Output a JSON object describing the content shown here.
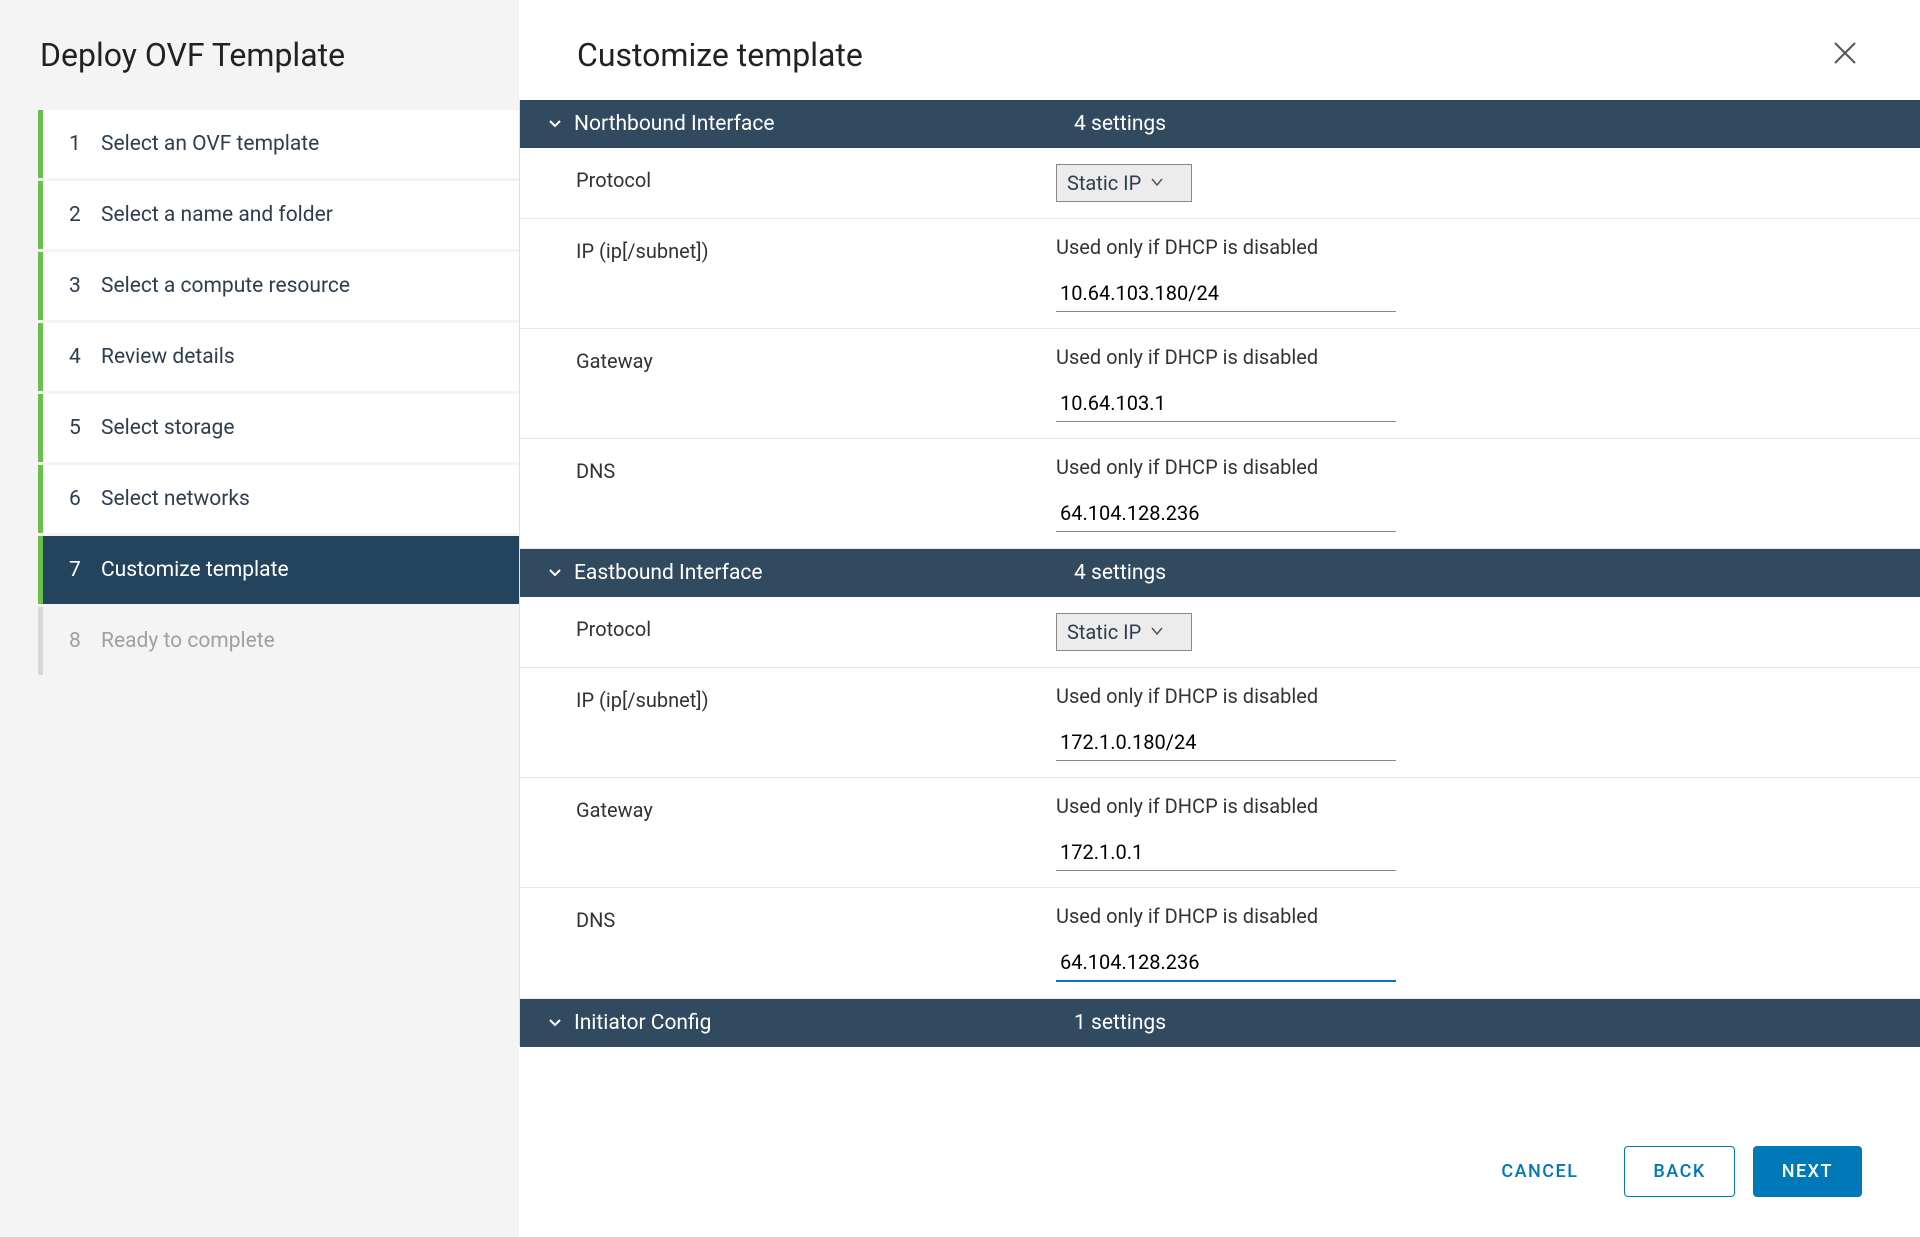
{
  "wizard": {
    "title": "Deploy OVF Template",
    "steps": [
      {
        "num": "1",
        "label": "Select an OVF template",
        "state": "done"
      },
      {
        "num": "2",
        "label": "Select a name and folder",
        "state": "done"
      },
      {
        "num": "3",
        "label": "Select a compute resource",
        "state": "done"
      },
      {
        "num": "4",
        "label": "Review details",
        "state": "done"
      },
      {
        "num": "5",
        "label": "Select storage",
        "state": "done"
      },
      {
        "num": "6",
        "label": "Select networks",
        "state": "done"
      },
      {
        "num": "7",
        "label": "Customize template",
        "state": "active"
      },
      {
        "num": "8",
        "label": "Ready to complete",
        "state": "disabled"
      }
    ]
  },
  "page": {
    "title": "Customize template"
  },
  "sections": [
    {
      "title": "Northbound Interface",
      "count": "4 settings",
      "rows": [
        {
          "label": "Protocol",
          "type": "select",
          "value": "Static IP"
        },
        {
          "label": "IP (ip[/subnet])",
          "type": "input",
          "hint": "Used only if DHCP is disabled",
          "value": "10.64.103.180/24"
        },
        {
          "label": "Gateway",
          "type": "input",
          "hint": "Used only if DHCP is disabled",
          "value": "10.64.103.1"
        },
        {
          "label": "DNS",
          "type": "input",
          "hint": "Used only if DHCP is disabled",
          "value": "64.104.128.236"
        }
      ]
    },
    {
      "title": "Eastbound Interface",
      "count": "4 settings",
      "rows": [
        {
          "label": "Protocol",
          "type": "select",
          "value": "Static IP"
        },
        {
          "label": "IP (ip[/subnet])",
          "type": "input",
          "hint": "Used only if DHCP is disabled",
          "value": "172.1.0.180/24"
        },
        {
          "label": "Gateway",
          "type": "input",
          "hint": "Used only if DHCP is disabled",
          "value": "172.1.0.1"
        },
        {
          "label": "DNS",
          "type": "input",
          "hint": "Used only if DHCP is disabled",
          "value": "64.104.128.236",
          "focused": true
        }
      ]
    },
    {
      "title": "Initiator Config",
      "count": "1 settings",
      "rows": []
    }
  ],
  "footer": {
    "cancel": "CANCEL",
    "back": "BACK",
    "next": "NEXT"
  },
  "colors": {
    "sidebar_bg": "#f4f4f4",
    "step_done_border": "#6bbf4b",
    "step_active_bg": "#24445d",
    "section_header_bg": "#314a5f",
    "primary": "#0079b8"
  }
}
